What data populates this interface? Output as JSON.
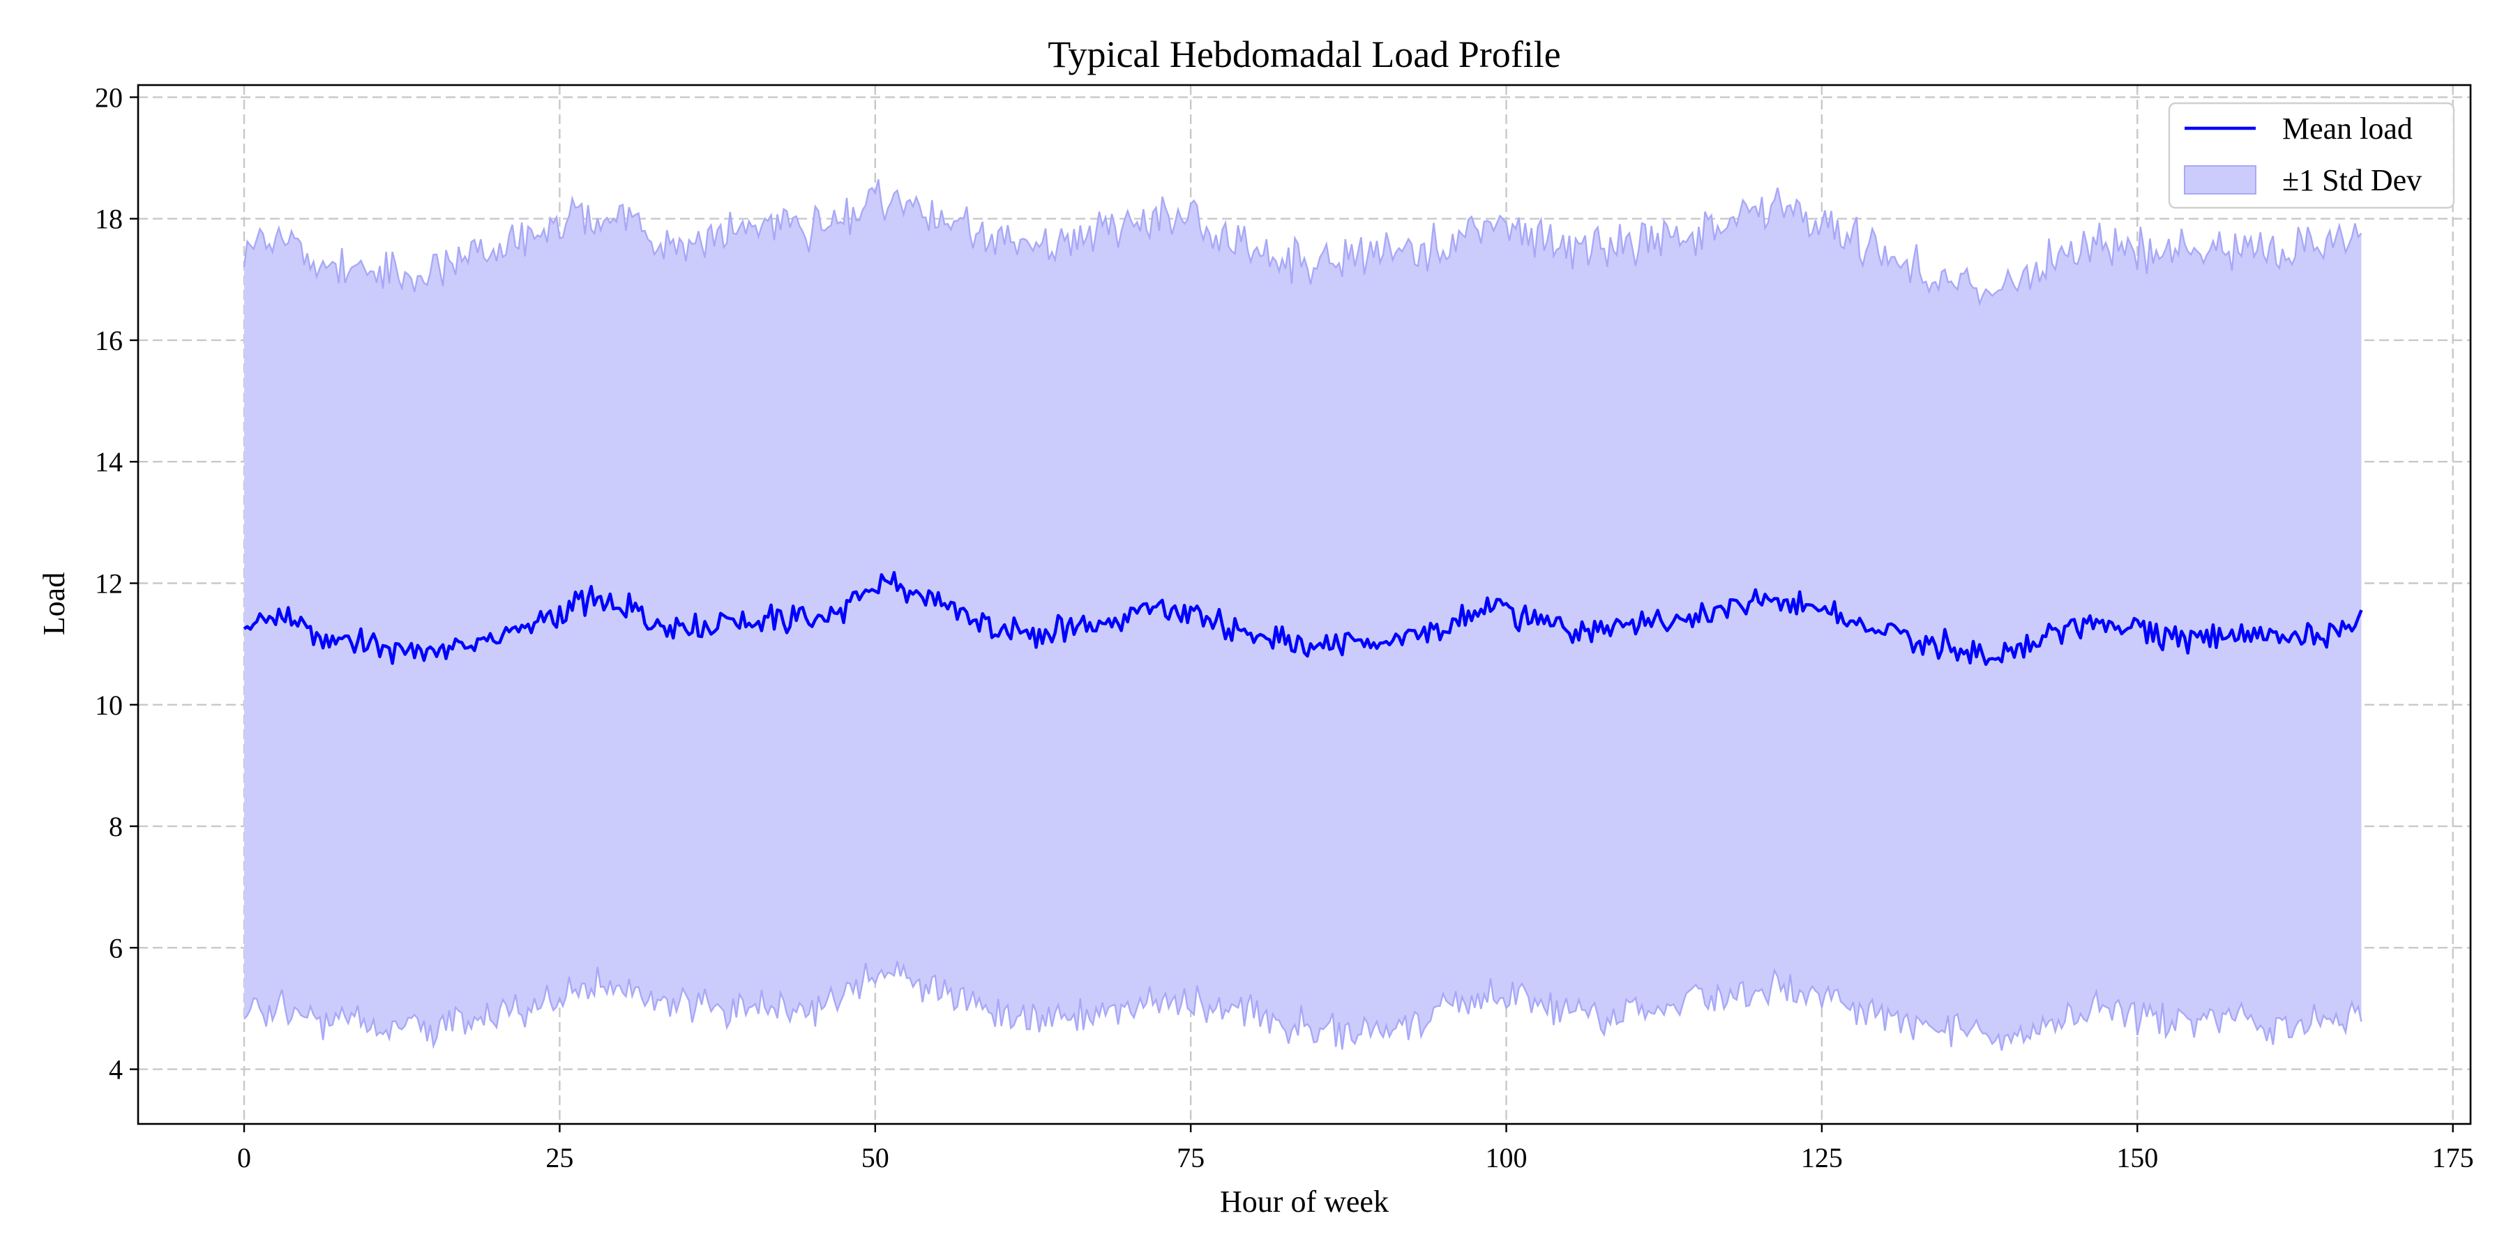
{
  "chart_data": {
    "type": "line",
    "title": "Typical Hebdomadal Load Profile",
    "xlabel": "Hour of week",
    "ylabel": "Load",
    "xlim": [
      -8.4,
      176.4
    ],
    "ylim": [
      3.1,
      20.2
    ],
    "xticks": [
      0,
      25,
      50,
      75,
      100,
      125,
      150,
      175
    ],
    "yticks": [
      4,
      6,
      8,
      10,
      12,
      14,
      16,
      18,
      20
    ],
    "grid": true,
    "legend_position": "top-right",
    "x_range": [
      0,
      167.75
    ],
    "sample_step": 0.25,
    "colors": {
      "mean_line": "#0000ff",
      "band_fill": "#ccccfc",
      "band_edge": "#a8a8f8",
      "grid": "#c8c8c8"
    },
    "legend": [
      {
        "label": "Mean load",
        "kind": "line"
      },
      {
        "label": "±1 Std Dev",
        "kind": "band"
      }
    ],
    "series": [
      {
        "name": "Mean load",
        "anchor_x": [
          0,
          3,
          6,
          9,
          12,
          15,
          18,
          21,
          24,
          27,
          30,
          33,
          36,
          39,
          42,
          45,
          48,
          51,
          54,
          57,
          60,
          63,
          66,
          69,
          72,
          75,
          78,
          81,
          84,
          87,
          90,
          93,
          96,
          99,
          102,
          105,
          108,
          111,
          114,
          117,
          120,
          123,
          126,
          129,
          132,
          135,
          138,
          141,
          144,
          147,
          150,
          153,
          156,
          159,
          162,
          165,
          167.75
        ],
        "anchor_y": [
          11.3,
          11.5,
          11.1,
          11.1,
          10.9,
          10.9,
          11.0,
          11.2,
          11.4,
          11.7,
          11.6,
          11.3,
          11.3,
          11.4,
          11.4,
          11.4,
          11.6,
          12.0,
          11.8,
          11.5,
          11.2,
          11.2,
          11.3,
          11.4,
          11.6,
          11.5,
          11.3,
          11.1,
          11.0,
          11.0,
          11.1,
          11.1,
          11.4,
          11.6,
          11.4,
          11.2,
          11.2,
          11.3,
          11.4,
          11.6,
          11.7,
          11.7,
          11.5,
          11.2,
          11.1,
          11.0,
          10.8,
          10.9,
          11.2,
          11.4,
          11.2,
          11.1,
          11.1,
          11.2,
          11.1,
          11.1,
          11.4
        ],
        "noise_amplitude": 0.28
      },
      {
        "name": "±1 Std Dev",
        "upper_anchor_y": [
          17.6,
          17.6,
          17.3,
          17.2,
          17.0,
          17.1,
          17.4,
          17.6,
          17.8,
          18.0,
          18.0,
          17.6,
          17.6,
          17.8,
          17.9,
          17.8,
          18.0,
          18.4,
          18.1,
          17.8,
          17.6,
          17.6,
          17.7,
          17.8,
          18.0,
          17.9,
          17.6,
          17.4,
          17.3,
          17.3,
          17.4,
          17.4,
          17.8,
          18.0,
          17.8,
          17.5,
          17.5,
          17.6,
          17.7,
          17.9,
          18.1,
          18.1,
          17.8,
          17.5,
          17.3,
          17.0,
          16.8,
          17.0,
          17.4,
          17.6,
          17.5,
          17.4,
          17.4,
          17.5,
          17.5,
          17.5,
          17.7
        ],
        "lower_anchor_y": [
          4.9,
          5.1,
          4.8,
          4.8,
          4.7,
          4.6,
          4.8,
          4.9,
          5.1,
          5.4,
          5.3,
          5.0,
          5.0,
          5.0,
          5.0,
          5.0,
          5.3,
          5.6,
          5.4,
          5.1,
          4.9,
          4.9,
          4.9,
          5.0,
          5.2,
          5.1,
          5.0,
          4.8,
          4.7,
          4.6,
          4.7,
          4.8,
          5.1,
          5.2,
          5.1,
          4.9,
          4.9,
          5.0,
          5.1,
          5.2,
          5.3,
          5.3,
          5.2,
          4.9,
          4.8,
          4.7,
          4.5,
          4.6,
          4.8,
          5.0,
          4.9,
          4.8,
          4.8,
          4.8,
          4.7,
          4.8,
          4.8
        ],
        "noise_amplitude": 0.45
      }
    ]
  }
}
